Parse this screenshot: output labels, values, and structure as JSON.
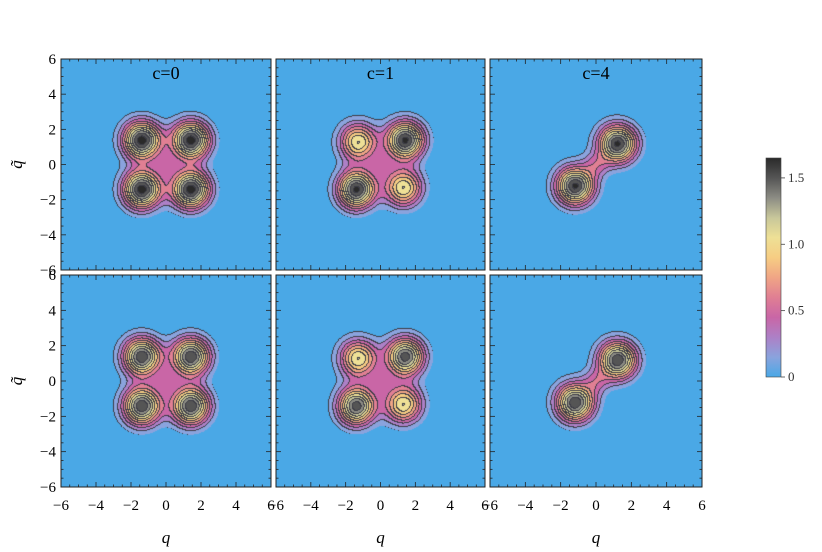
{
  "chart_data": {
    "type": "contour",
    "layout": {
      "rows": 2,
      "cols": 3
    },
    "column_titles": [
      "c=0",
      "c=1",
      "c=4"
    ],
    "xlabel": "q",
    "ylabel": "q̃",
    "xlim": [
      -6,
      6
    ],
    "ylim": [
      -6,
      6
    ],
    "x_ticks": [
      "−6",
      "−4",
      "−2",
      "0",
      "2",
      "4",
      "6"
    ],
    "y_ticks": [
      "−6",
      "−4",
      "−2",
      "0",
      "2",
      "4",
      "6"
    ],
    "colorbar": {
      "min": 0,
      "max": 1.65,
      "ticks": [
        {
          "value": 0,
          "label": "0"
        },
        {
          "value": 0.5,
          "label": "0.5"
        },
        {
          "value": 1.0,
          "label": "1.0"
        },
        {
          "value": 1.5,
          "label": "1.5"
        }
      ],
      "colors": [
        "#4aa8e6",
        "#8aa3dd",
        "#ad80c6",
        "#c966a6",
        "#e07f93",
        "#f0a585",
        "#f6cd83",
        "#eee096",
        "#c8c79a",
        "#8c8c84",
        "#555555",
        "#2a2a2a"
      ]
    },
    "panels": [
      {
        "row": 0,
        "col": 0,
        "column_title": "c=0",
        "peaks": [
          [
            -1.4,
            1.4,
            1.6
          ],
          [
            1.4,
            1.4,
            1.6
          ],
          [
            -1.4,
            -1.4,
            1.6
          ],
          [
            1.4,
            -1.4,
            1.6
          ]
        ],
        "center": [
          0,
          0,
          0.75
        ]
      },
      {
        "row": 0,
        "col": 1,
        "column_title": "c=1",
        "peaks": [
          [
            1.4,
            1.4,
            1.55
          ],
          [
            -1.4,
            -1.4,
            1.55
          ],
          [
            -1.3,
            1.3,
            1.1
          ],
          [
            1.3,
            -1.3,
            1.1
          ]
        ],
        "center": [
          0,
          0,
          0.75
        ]
      },
      {
        "row": 0,
        "col": 2,
        "column_title": "c=4",
        "peaks": [
          [
            1.2,
            1.2,
            1.55
          ],
          [
            -1.2,
            -1.2,
            1.55
          ]
        ],
        "center": [
          0,
          0,
          0.95
        ]
      },
      {
        "row": 1,
        "col": 0,
        "column_title": "",
        "peaks": [
          [
            -1.4,
            1.4,
            1.5
          ],
          [
            1.4,
            1.4,
            1.5
          ],
          [
            -1.4,
            -1.4,
            1.5
          ],
          [
            1.4,
            -1.4,
            1.5
          ]
        ],
        "center": [
          0,
          0,
          0.75
        ]
      },
      {
        "row": 1,
        "col": 1,
        "column_title": "",
        "peaks": [
          [
            1.4,
            1.4,
            1.45
          ],
          [
            -1.4,
            -1.4,
            1.45
          ],
          [
            -1.3,
            1.3,
            1.1
          ],
          [
            1.3,
            -1.3,
            1.1
          ]
        ],
        "center": [
          0,
          0,
          0.75
        ]
      },
      {
        "row": 1,
        "col": 2,
        "column_title": "",
        "peaks": [
          [
            1.2,
            1.2,
            1.5
          ],
          [
            -1.2,
            -1.2,
            1.5
          ]
        ],
        "center": [
          0,
          0,
          0.95
        ]
      }
    ]
  }
}
